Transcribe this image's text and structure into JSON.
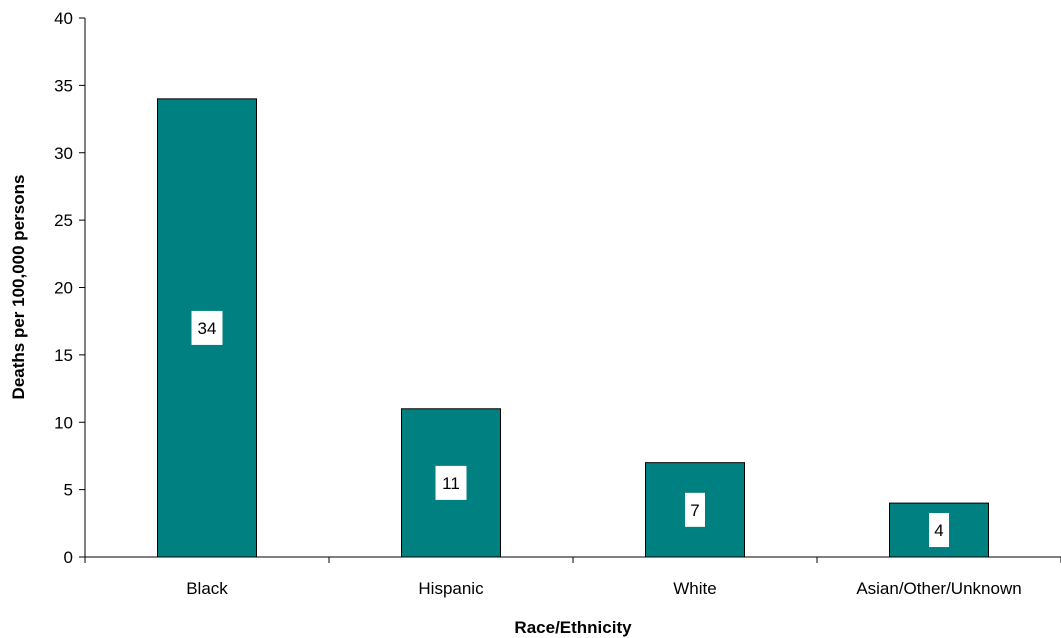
{
  "chart_data": {
    "type": "bar",
    "title": "",
    "xlabel": "Race/Ethnicity",
    "ylabel": "Deaths per 100,000 persons",
    "categories": [
      "Black",
      "Hispanic",
      "White",
      "Asian/Other/Unknown"
    ],
    "values": [
      34,
      11,
      7,
      4
    ],
    "data_labels": [
      "34",
      "11",
      "7",
      "4"
    ],
    "ylim": [
      0,
      40
    ],
    "yticks": [
      0,
      5,
      10,
      15,
      20,
      25,
      30,
      35,
      40
    ],
    "ytick_labels": [
      "0",
      "5",
      "10",
      "15",
      "20",
      "25",
      "30",
      "35",
      "40"
    ],
    "grid": false,
    "legend": "none",
    "bar_color": "#008080"
  }
}
